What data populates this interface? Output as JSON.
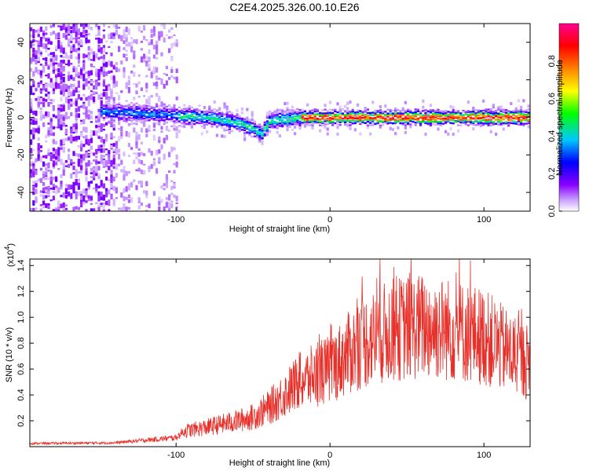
{
  "title": "C2E4.2025.326.00.10.E26",
  "chart_data": [
    {
      "type": "heatmap",
      "name": "spectrogram",
      "xlabel": "Height of straight line (km)",
      "ylabel": "Frequency (Hz)",
      "xlim": [
        -195,
        130
      ],
      "ylim": [
        -50,
        50
      ],
      "xticks": [
        -100,
        0,
        100
      ],
      "xtick_labels": [
        "-100",
        "0",
        "100"
      ],
      "yticks": [
        -40,
        -20,
        0,
        20,
        40
      ],
      "ytick_labels": [
        "-40",
        "-20",
        "0",
        "20",
        "40"
      ],
      "colorbar": {
        "label": "Normalized spectral amplitude",
        "range": [
          0,
          1
        ],
        "ticks": [
          0.0,
          0.2,
          0.4,
          0.6,
          0.8
        ],
        "tick_labels": [
          "0.0",
          "0.2",
          "0.4",
          "0.6",
          "0.8"
        ],
        "colors": [
          "#ffffff",
          "#8a00ff",
          "#0000ff",
          "#00c8ff",
          "#00ff00",
          "#ffff00",
          "#ff8000",
          "#ff0000",
          "#ff0090"
        ]
      },
      "ridge": {
        "description_points_x": [
          -140,
          -120,
          -100,
          -80,
          -60,
          -50,
          -45,
          -40,
          -30,
          -20,
          -10,
          0,
          50,
          100,
          130
        ],
        "description_points_y": [
          3,
          2,
          1,
          0,
          -3,
          -6,
          -9,
          -2,
          -1,
          0,
          0,
          0,
          0,
          0,
          0
        ]
      }
    },
    {
      "type": "line",
      "name": "snr",
      "xlabel": "Height of straight line (km)",
      "ylabel": "SNR (10 * v/v)",
      "y_multiplier_label": "(x10",
      "y_multiplier_exp": "4",
      "xlim": [
        -195,
        130
      ],
      "ylim": [
        0,
        14500
      ],
      "xticks": [
        -100,
        0,
        100
      ],
      "xtick_labels": [
        "-100",
        "0",
        "100"
      ],
      "yticks": [
        2000,
        4000,
        6000,
        8000,
        10000,
        12000,
        14000
      ],
      "ytick_labels": [
        "0.2",
        "0.4",
        "0.6",
        "0.8",
        "1.0",
        "1.2",
        "1.4"
      ],
      "color": "#e8302a",
      "trend_x": [
        -195,
        -140,
        -120,
        -100,
        -95,
        -80,
        -60,
        -50,
        -40,
        -30,
        -20,
        -10,
        0,
        20,
        40,
        60,
        80,
        100,
        120,
        130
      ],
      "trend_y": [
        250,
        300,
        500,
        700,
        1200,
        1500,
        2000,
        2300,
        3000,
        4000,
        5000,
        5500,
        6000,
        8000,
        9000,
        9300,
        9000,
        8500,
        7000,
        6500
      ]
    }
  ]
}
